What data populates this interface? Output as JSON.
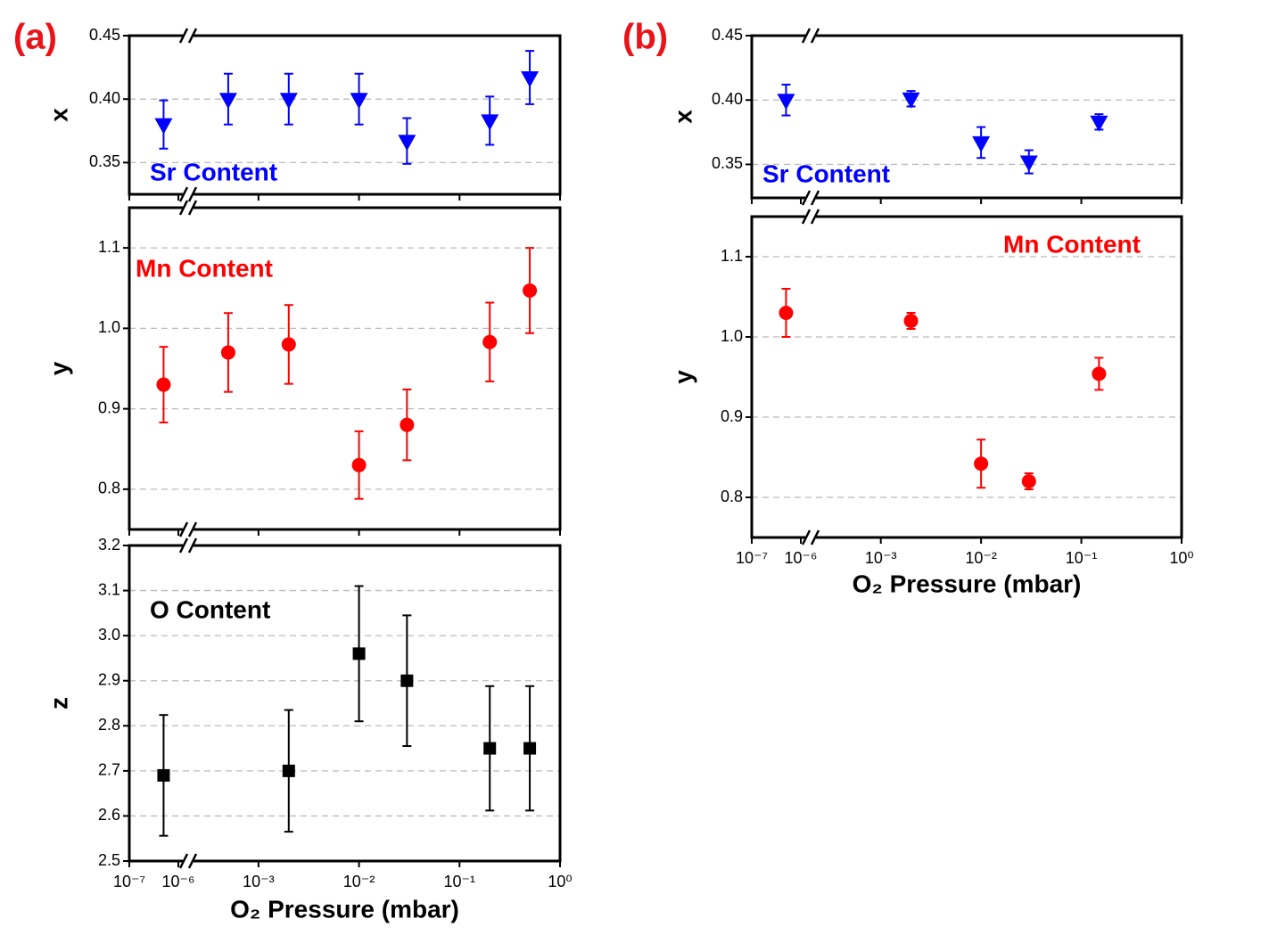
{
  "chart_data": [
    {
      "type": "scatter",
      "label": "(a)",
      "xlabel": "O₂ Pressure (mbar)",
      "xscale": "log",
      "xlim": [
        1e-07,
        1
      ],
      "axis_break": [
        1e-06,
        0.00025
      ],
      "xticks": [
        {
          "value": 1e-07,
          "label": "10⁻⁷"
        },
        {
          "value": 1e-06,
          "label": "10⁻⁶"
        },
        {
          "value": 0.001,
          "label": "10⁻³"
        },
        {
          "value": 0.01,
          "label": "10⁻²"
        },
        {
          "value": 0.1,
          "label": "10⁻¹"
        },
        {
          "value": 1,
          "label": "10⁰"
        }
      ],
      "x": [
        5e-07,
        0.0005,
        0.002,
        0.01,
        0.03,
        0.2,
        0.5
      ],
      "grid": true,
      "panels": [
        {
          "ylabel": "x",
          "ylim": [
            0.325,
            0.45
          ],
          "yticks": [
            0.35,
            {
              "value": 0.4,
              "label": "0.40"
            },
            0.45
          ],
          "series": [
            {
              "name": "Sr Content",
              "color": "#0000ff",
              "marker": "triangle-down",
              "values": [
                0.38,
                0.4,
                0.4,
                0.4,
                0.367,
                0.383,
                0.417
              ],
              "errors": [
                0.019,
                0.02,
                0.02,
                0.02,
                0.018,
                0.019,
                0.021
              ]
            }
          ]
        },
        {
          "ylabel": "y",
          "ylim": [
            0.75,
            1.15
          ],
          "yticks": [
            0.8,
            0.9,
            {
              "value": 1.0,
              "label": "1.0"
            },
            1.1
          ],
          "series": [
            {
              "name": "Mn Content",
              "color": "#ff0000",
              "marker": "circle",
              "values": [
                0.93,
                0.97,
                0.98,
                0.83,
                0.88,
                0.983,
                1.047
              ],
              "errors": [
                0.047,
                0.049,
                0.049,
                0.042,
                0.044,
                0.049,
                0.053
              ]
            }
          ]
        },
        {
          "ylabel": "z",
          "ylim": [
            2.5,
            3.2
          ],
          "yticks": [
            2.5,
            2.6,
            2.7,
            2.8,
            2.9,
            {
              "value": 3.0,
              "label": "3.0"
            },
            3.1,
            3.2
          ],
          "series": [
            {
              "name": "O Content",
              "color": "#000000",
              "marker": "square",
              "values": [
                2.69,
                null,
                2.7,
                2.96,
                2.9,
                2.75,
                2.75
              ],
              "errors": [
                0.134,
                null,
                0.135,
                0.15,
                0.145,
                0.138,
                0.138
              ]
            }
          ]
        }
      ]
    },
    {
      "type": "scatter",
      "label": "(b)",
      "xlabel": "O₂ Pressure (mbar)",
      "xscale": "log",
      "xlim": [
        1e-07,
        1
      ],
      "axis_break": [
        1e-06,
        0.00025
      ],
      "xticks": [
        {
          "value": 1e-07,
          "label": "10⁻⁷"
        },
        {
          "value": 1e-06,
          "label": "10⁻⁶"
        },
        {
          "value": 0.001,
          "label": "10⁻³"
        },
        {
          "value": 0.01,
          "label": "10⁻²"
        },
        {
          "value": 0.1,
          "label": "10⁻¹"
        },
        {
          "value": 1,
          "label": "10⁰"
        }
      ],
      "x": [
        5e-07,
        0.002,
        0.01,
        0.03,
        0.15
      ],
      "grid": true,
      "panels": [
        {
          "ylabel": "x",
          "ylim": [
            0.324,
            0.45
          ],
          "yticks": [
            0.35,
            {
              "value": 0.4,
              "label": "0.40"
            },
            0.45
          ],
          "series": [
            {
              "name": "Sr Content",
              "color": "#0000ff",
              "marker": "triangle-down",
              "values": [
                0.4,
                0.401,
                0.367,
                0.352,
                0.383
              ],
              "errors": [
                0.012,
                0.006,
                0.012,
                0.009,
                0.006
              ]
            }
          ]
        },
        {
          "ylabel": "y",
          "ylim": [
            0.75,
            1.15
          ],
          "yticks": [
            0.8,
            0.9,
            {
              "value": 1.0,
              "label": "1.0"
            },
            1.1
          ],
          "series": [
            {
              "name": "Mn Content",
              "color": "#ff0000",
              "marker": "circle",
              "values": [
                1.03,
                1.02,
                0.842,
                0.82,
                0.954
              ],
              "errors": [
                0.03,
                0.01,
                0.03,
                0.01,
                0.02
              ]
            }
          ]
        }
      ]
    }
  ]
}
